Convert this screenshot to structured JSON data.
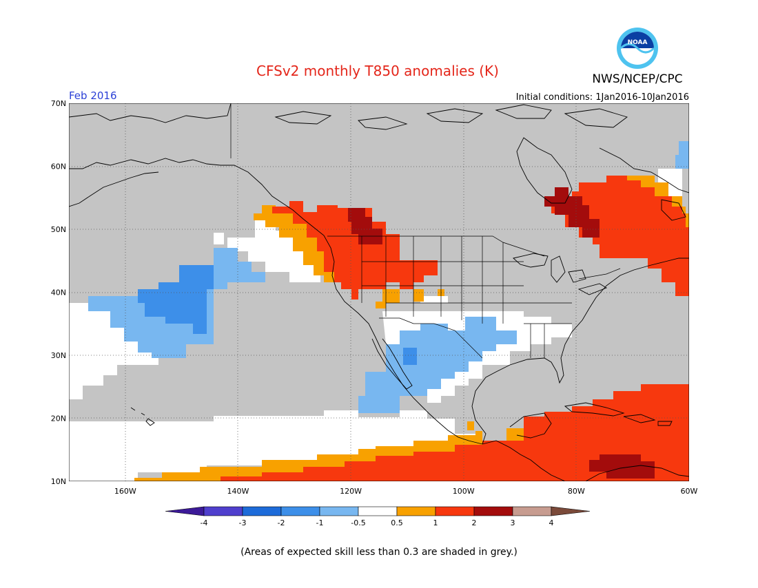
{
  "header": {
    "title": "CFSv2 monthly T850 anomalies (K)",
    "agency": "NWS/NCEP/CPC",
    "logo_text": "NOAA",
    "period": "Feb 2016",
    "initial_conditions": "Initial conditions: 1Jan2016-10Jan2016"
  },
  "colors": {
    "title": "#e4261a",
    "period": "#2a3fd6",
    "grey_skill": "#c4c4c4",
    "land_line": "#000000"
  },
  "axes": {
    "lat_labels": [
      "70N",
      "60N",
      "50N",
      "40N",
      "30N",
      "20N",
      "10N"
    ],
    "lon_labels": [
      "160W",
      "140W",
      "120W",
      "100W",
      "80W",
      "60W"
    ]
  },
  "colorbar": {
    "ticks": [
      "-4",
      "-3",
      "-2",
      "-1",
      "-0.5",
      "0.5",
      "1",
      "2",
      "3",
      "4"
    ],
    "colors": [
      "#3c1a98",
      "#4f3fcd",
      "#1d6bd9",
      "#3d8fe9",
      "#78b7f0",
      "#ffffff",
      "#f8a100",
      "#f7380e",
      "#a30c0c",
      "#c79c90",
      "#7b4a3a"
    ]
  },
  "footer": {
    "note": "(Areas of expected skill less than 0.3 are shaded in grey.)"
  }
}
